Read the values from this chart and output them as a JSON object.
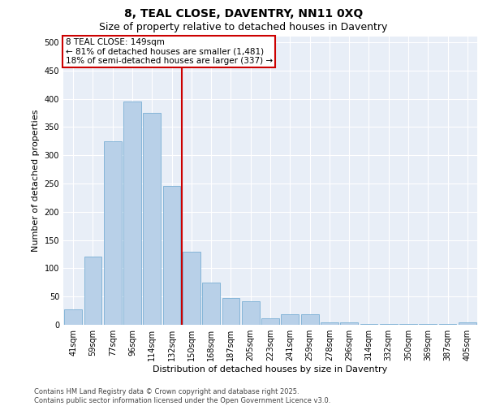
{
  "title": "8, TEAL CLOSE, DAVENTRY, NN11 0XQ",
  "subtitle": "Size of property relative to detached houses in Daventry",
  "xlabel": "Distribution of detached houses by size in Daventry",
  "ylabel": "Number of detached properties",
  "categories": [
    "41sqm",
    "59sqm",
    "77sqm",
    "96sqm",
    "114sqm",
    "132sqm",
    "150sqm",
    "168sqm",
    "187sqm",
    "205sqm",
    "223sqm",
    "241sqm",
    "259sqm",
    "278sqm",
    "296sqm",
    "314sqm",
    "332sqm",
    "350sqm",
    "369sqm",
    "387sqm",
    "405sqm"
  ],
  "values": [
    27,
    120,
    325,
    395,
    375,
    245,
    130,
    75,
    48,
    42,
    12,
    18,
    18,
    5,
    5,
    2,
    2,
    2,
    2,
    2,
    5
  ],
  "bar_color": "#b8d0e8",
  "bar_edge_color": "#7aafd4",
  "vline_color": "#cc0000",
  "vline_x_index": 6,
  "annotation_text": "8 TEAL CLOSE: 149sqm\n← 81% of detached houses are smaller (1,481)\n18% of semi-detached houses are larger (337) →",
  "annotation_box_facecolor": "#ffffff",
  "annotation_box_edgecolor": "#cc0000",
  "ylim": [
    0,
    510
  ],
  "yticks": [
    0,
    50,
    100,
    150,
    200,
    250,
    300,
    350,
    400,
    450,
    500
  ],
  "fig_facecolor": "#ffffff",
  "ax_facecolor": "#e8eef7",
  "grid_color": "#ffffff",
  "footer": "Contains HM Land Registry data © Crown copyright and database right 2025.\nContains public sector information licensed under the Open Government Licence v3.0.",
  "title_fontsize": 10,
  "subtitle_fontsize": 9,
  "ylabel_fontsize": 8,
  "xlabel_fontsize": 8,
  "tick_fontsize": 7,
  "annotation_fontsize": 7.5,
  "footer_fontsize": 6
}
